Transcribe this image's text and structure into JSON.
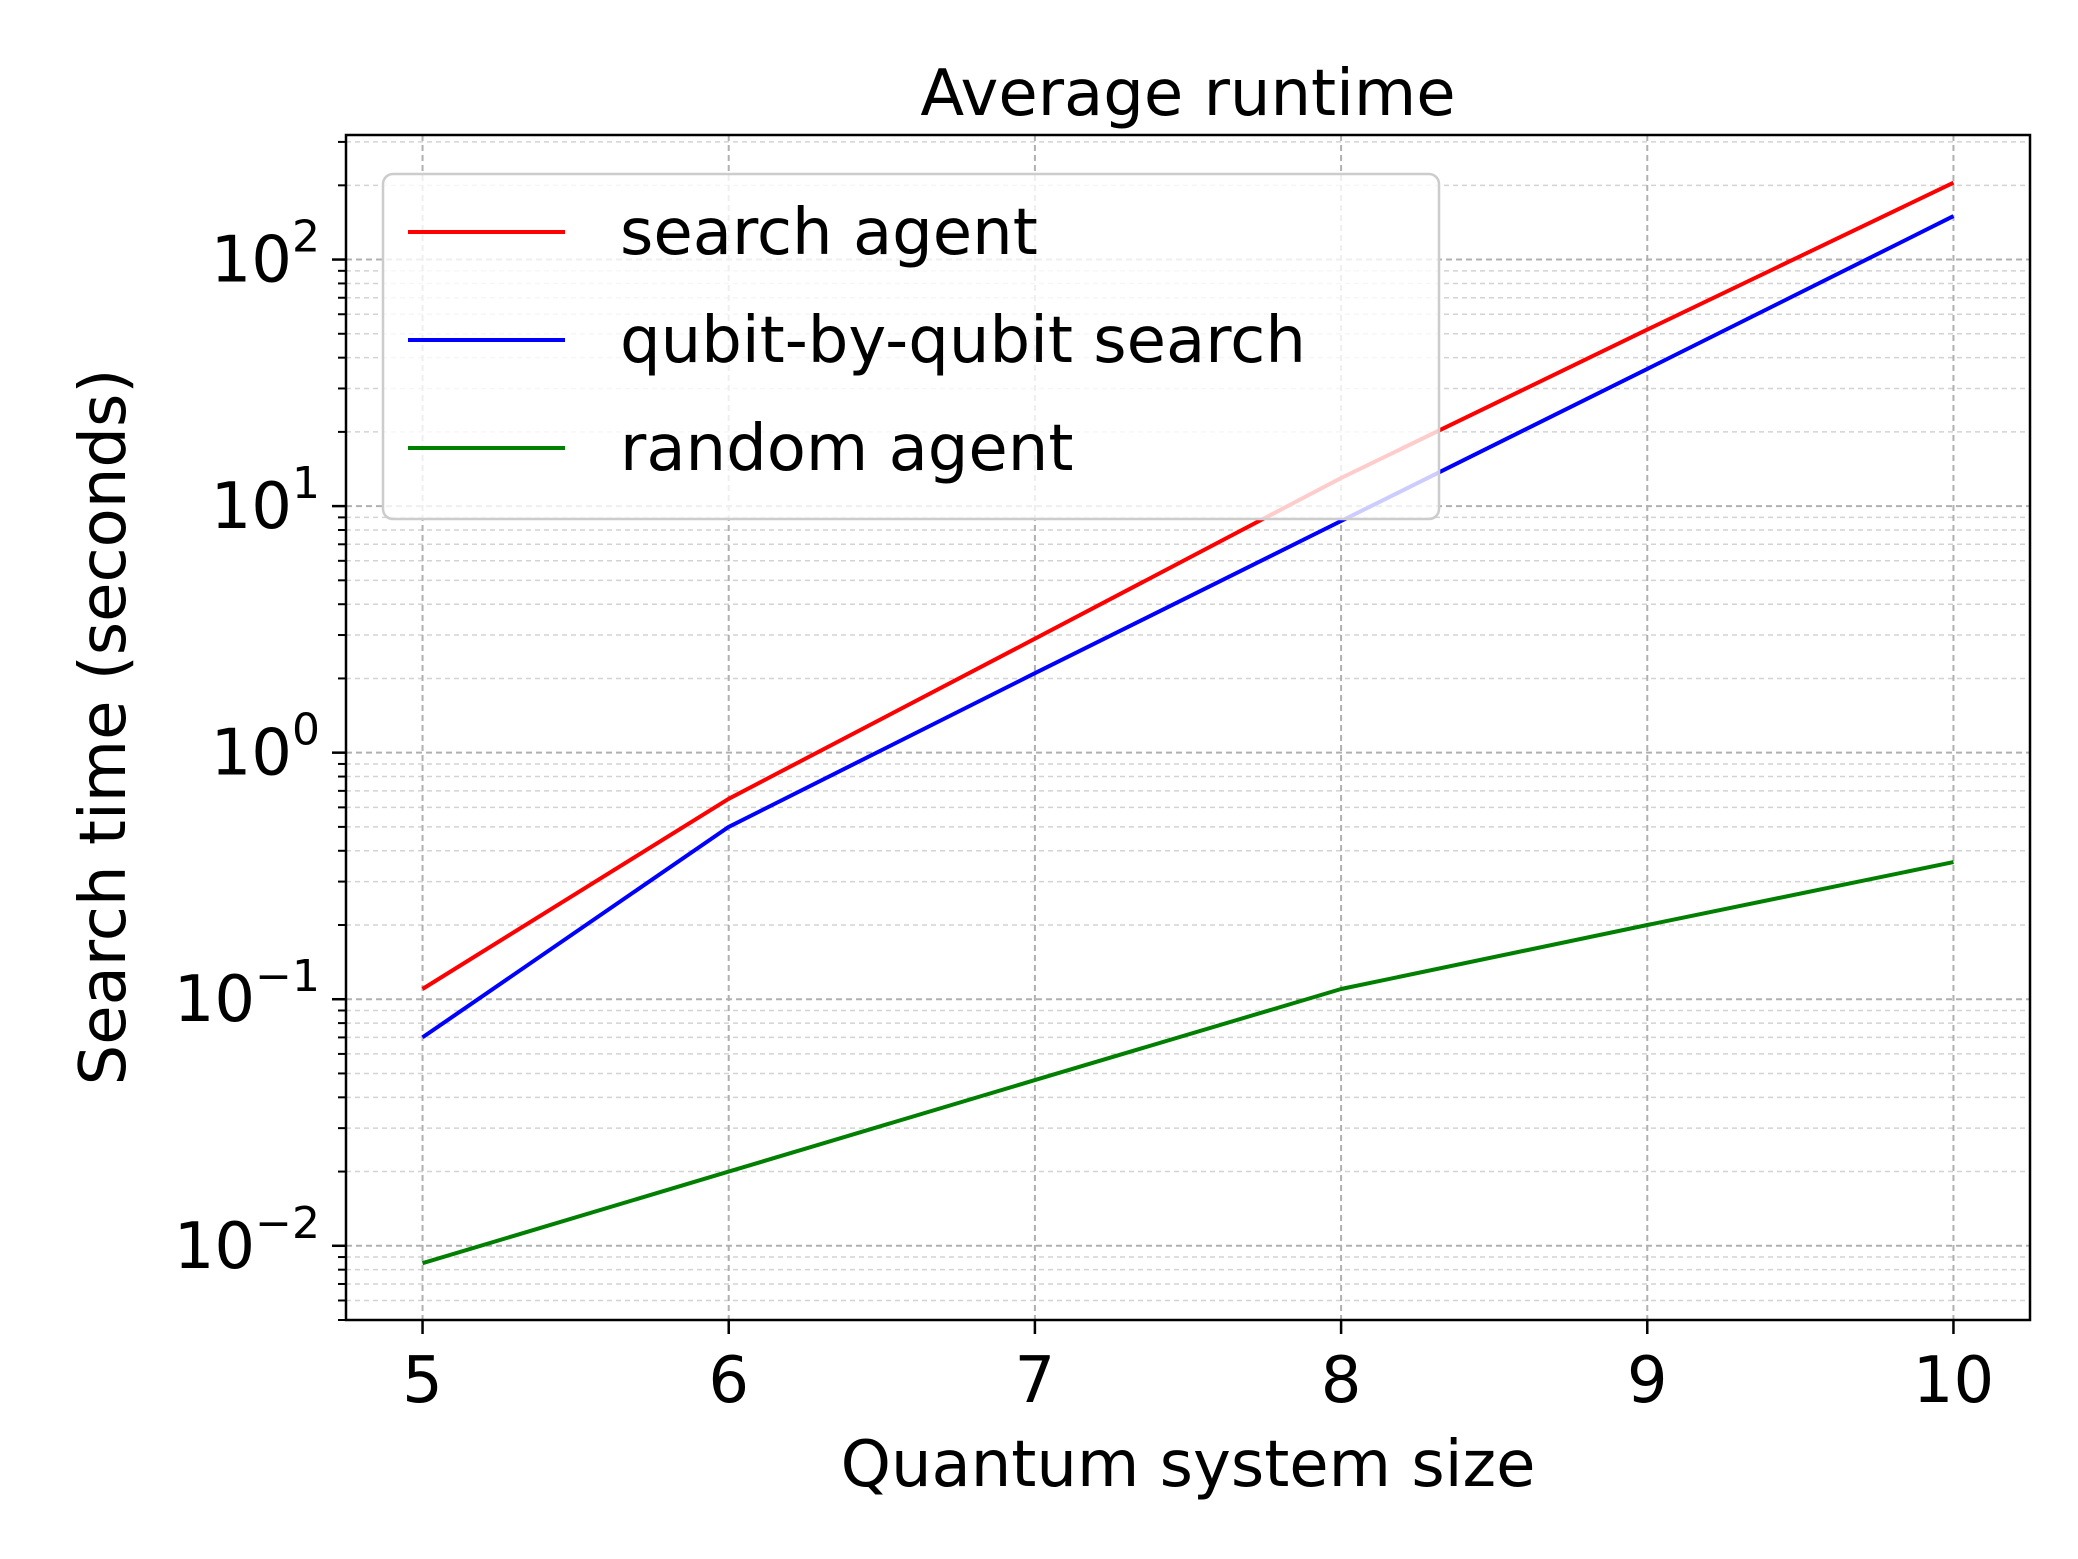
{
  "chart_data": {
    "type": "line",
    "title": "Average runtime",
    "xlabel": "Quantum system size",
    "ylabel": "Search time (seconds)",
    "x": [
      5,
      6,
      7,
      8,
      9,
      10
    ],
    "xlim": [
      4.75,
      10.25
    ],
    "xticks": [
      5,
      6,
      7,
      8,
      9,
      10
    ],
    "xtick_labels": [
      "5",
      "6",
      "7",
      "8",
      "9",
      "10"
    ],
    "yscale": "log",
    "ylim": [
      0.005,
      320
    ],
    "yticks": [
      0.01,
      0.1,
      1,
      10,
      100
    ],
    "ytick_labels": [
      {
        "base": "10",
        "exp": "−2"
      },
      {
        "base": "10",
        "exp": "−1"
      },
      {
        "base": "10",
        "exp": "0"
      },
      {
        "base": "10",
        "exp": "1"
      },
      {
        "base": "10",
        "exp": "2"
      }
    ],
    "grid": true,
    "legend_position": "top-left",
    "series": [
      {
        "name": "search agent",
        "color": "#ff0000",
        "values": [
          0.11,
          0.65,
          2.9,
          13,
          52,
          205
        ]
      },
      {
        "name": "qubit-by-qubit search",
        "color": "#0000ff",
        "values": [
          0.07,
          0.5,
          2.1,
          8.7,
          36,
          150
        ]
      },
      {
        "name": "random agent",
        "color": "#007f00",
        "values": [
          0.0085,
          0.02,
          0.047,
          0.11,
          0.2,
          0.36
        ]
      }
    ]
  }
}
